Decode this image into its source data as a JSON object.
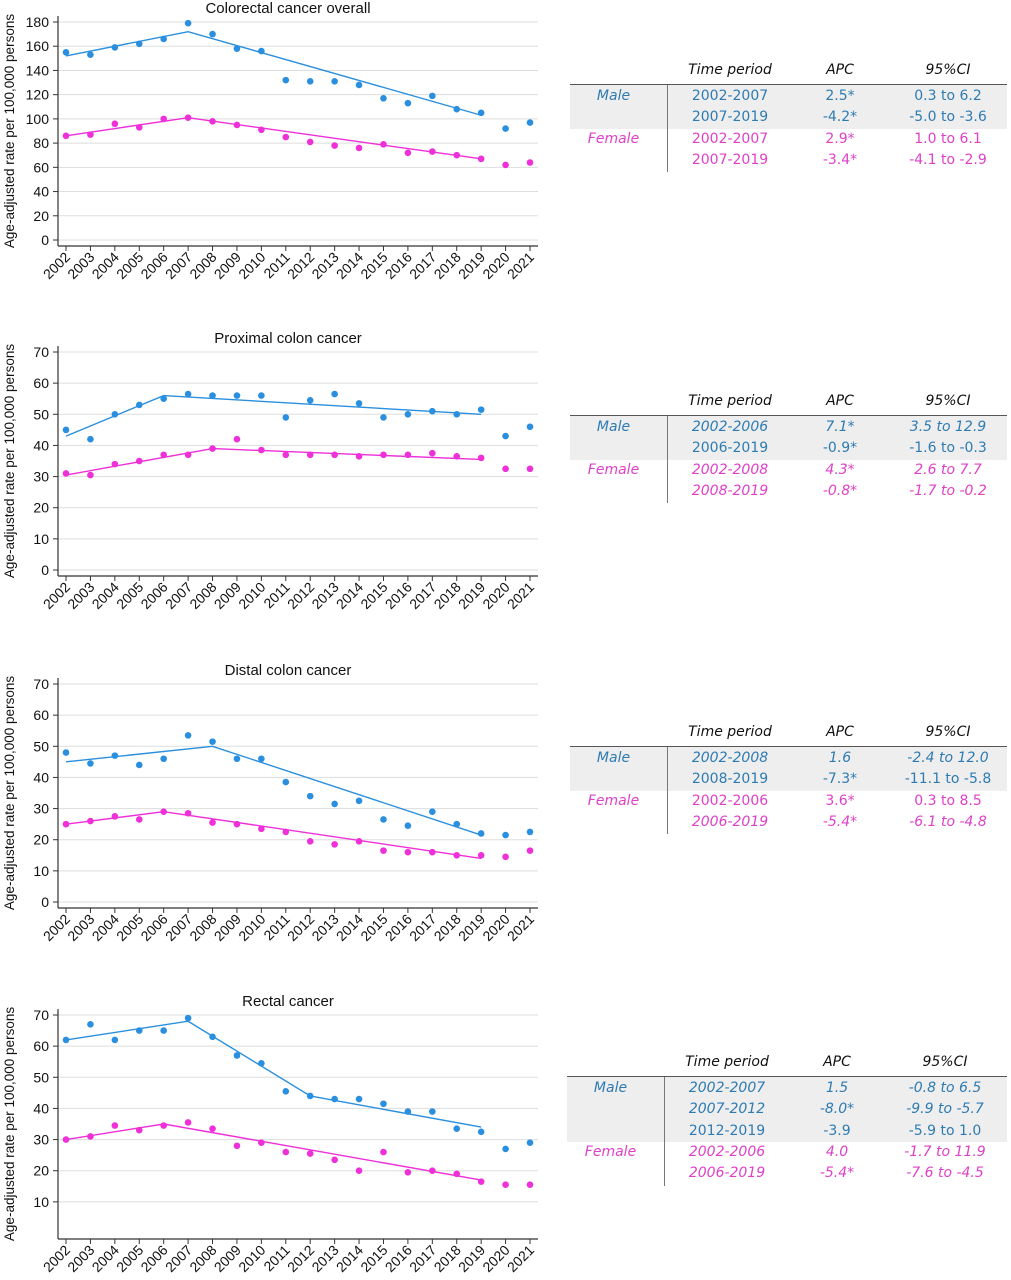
{
  "colors": {
    "male": "#2a8fde",
    "female": "#ef2fd8",
    "table_male_text": "#2e7bb2",
    "table_female_text": "#e040c8",
    "shade": "#eeeeee"
  },
  "table_headers": {
    "period": "Time period",
    "apc": "APC",
    "ci": "95%CI"
  },
  "chart_data": [
    {
      "type": "scatter",
      "title": "Colorectal cancer overall",
      "ylabel": "Age-adjusted rate per 100,000 persons",
      "xlabel": "",
      "ylim": [
        0,
        180
      ],
      "yticks": [
        0,
        20,
        40,
        60,
        80,
        100,
        120,
        140,
        160,
        180
      ],
      "grid": true,
      "categories": [
        "2002",
        "2003",
        "2004",
        "2005",
        "2006",
        "2007",
        "2008",
        "2009",
        "2010",
        "2011",
        "2012",
        "2013",
        "2014",
        "2015",
        "2016",
        "2017",
        "2018",
        "2019",
        "2020",
        "2021"
      ],
      "series": [
        {
          "name": "Male",
          "color": "#2a8fde",
          "values": [
            155,
            153,
            159,
            162,
            166,
            179,
            170,
            158,
            156,
            132,
            131,
            131,
            128,
            117,
            113,
            119,
            108,
            105,
            92,
            97
          ],
          "trend": [
            [
              2002,
              152
            ],
            [
              2007,
              172
            ],
            [
              2019,
              103
            ]
          ]
        },
        {
          "name": "Female",
          "color": "#ef2fd8",
          "values": [
            86,
            87,
            96,
            93,
            100,
            101,
            98,
            95,
            91,
            85,
            81,
            78,
            76,
            79,
            72,
            73,
            70,
            67,
            62,
            64
          ],
          "trend": [
            [
              2002,
              86
            ],
            [
              2007,
              101
            ],
            [
              2019,
              67
            ]
          ]
        }
      ],
      "apc_table": {
        "male": [
          {
            "period": "2002-2007",
            "apc": "2.5*",
            "ci": "0.3 to 6.2",
            "italic": false
          },
          {
            "period": "2007-2019",
            "apc": "-4.2*",
            "ci": "-5.0 to -3.6",
            "italic": false
          }
        ],
        "female": [
          {
            "period": "2002-2007",
            "apc": "2.9*",
            "ci": "1.0 to 6.1",
            "italic": false
          },
          {
            "period": "2007-2019",
            "apc": "-3.4*",
            "ci": "-4.1 to -2.9",
            "italic": false
          }
        ]
      }
    },
    {
      "type": "scatter",
      "title": "Proximal colon cancer",
      "ylabel": "Age-adjusted rate per 100,000 persons",
      "xlabel": "",
      "ylim": [
        0,
        70
      ],
      "yticks": [
        0,
        10,
        20,
        30,
        40,
        50,
        60,
        70
      ],
      "grid": true,
      "categories": [
        "2002",
        "2003",
        "2004",
        "2005",
        "2006",
        "2007",
        "2008",
        "2009",
        "2010",
        "2011",
        "2012",
        "2013",
        "2014",
        "2015",
        "2016",
        "2017",
        "2018",
        "2019",
        "2020",
        "2021"
      ],
      "series": [
        {
          "name": "Male",
          "color": "#2a8fde",
          "values": [
            45,
            42,
            50,
            53,
            55,
            56.5,
            56,
            56,
            56,
            49,
            54.5,
            56.5,
            53.5,
            49,
            50,
            51,
            50,
            51.5,
            43,
            46
          ],
          "trend": [
            [
              2002,
              43
            ],
            [
              2006,
              56
            ],
            [
              2019,
              50
            ]
          ]
        },
        {
          "name": "Female",
          "color": "#ef2fd8",
          "values": [
            31,
            30.5,
            34,
            35,
            37,
            37,
            39,
            42,
            38.5,
            37,
            37,
            37,
            36.5,
            37,
            37,
            37.5,
            36.5,
            36,
            32.5,
            32.5
          ],
          "trend": [
            [
              2002,
              30.5
            ],
            [
              2008,
              39
            ],
            [
              2019,
              35.5
            ]
          ]
        }
      ],
      "apc_table": {
        "male": [
          {
            "period": "2002-2006",
            "apc": "7.1*",
            "ci": "3.5 to 12.9",
            "italic": true
          },
          {
            "period": "2006-2019",
            "apc": "-0.9*",
            "ci": "-1.6 to -0.3",
            "italic": false
          }
        ],
        "female": [
          {
            "period": "2002-2008",
            "apc": "4.3*",
            "ci": "2.6 to 7.7",
            "italic": true
          },
          {
            "period": "2008-2019",
            "apc": "-0.8*",
            "ci": "-1.7 to -0.2",
            "italic": true
          }
        ]
      }
    },
    {
      "type": "scatter",
      "title": "Distal colon cancer",
      "ylabel": "Age-adjusted rate per 100,000 persons",
      "xlabel": "",
      "ylim": [
        0,
        70
      ],
      "yticks": [
        0,
        10,
        20,
        30,
        40,
        50,
        60,
        70
      ],
      "grid": true,
      "categories": [
        "2002",
        "2003",
        "2004",
        "2005",
        "2006",
        "2007",
        "2008",
        "2009",
        "2010",
        "2011",
        "2012",
        "2013",
        "2014",
        "2015",
        "2016",
        "2017",
        "2018",
        "2019",
        "2020",
        "2021"
      ],
      "series": [
        {
          "name": "Male",
          "color": "#2a8fde",
          "values": [
            48,
            44.5,
            47,
            44,
            46,
            53.5,
            51.5,
            46,
            46,
            38.5,
            34,
            31.5,
            32.5,
            26.5,
            24.5,
            29,
            25,
            22,
            21.5,
            22.5
          ],
          "trend": [
            [
              2002,
              45
            ],
            [
              2008,
              50
            ],
            [
              2019,
              21.5
            ]
          ]
        },
        {
          "name": "Female",
          "color": "#ef2fd8",
          "values": [
            25,
            26,
            27.5,
            26.5,
            29,
            28.5,
            25.5,
            25,
            23.5,
            22.5,
            19.5,
            18.5,
            19.5,
            16.5,
            16,
            16,
            15,
            15,
            14.5,
            16.5
          ],
          "trend": [
            [
              2002,
              25
            ],
            [
              2006,
              29
            ],
            [
              2019,
              14
            ]
          ]
        }
      ],
      "apc_table": {
        "male": [
          {
            "period": "2002-2008",
            "apc": "1.6",
            "ci": "-2.4 to 12.0",
            "italic": true
          },
          {
            "period": "2008-2019",
            "apc": "-7.3*",
            "ci": "-11.1 to -5.8",
            "italic": false
          }
        ],
        "female": [
          {
            "period": "2002-2006",
            "apc": "3.6*",
            "ci": "0.3 to 8.5",
            "italic": false
          },
          {
            "period": "2006-2019",
            "apc": "-5.4*",
            "ci": "-6.1 to -4.8",
            "italic": true
          }
        ]
      }
    },
    {
      "type": "scatter",
      "title": "Rectal cancer",
      "ylabel": "Age-adjusted rate per 100,000 persons",
      "xlabel": "",
      "ylim": [
        0,
        70
      ],
      "yticks": [
        10,
        20,
        30,
        40,
        50,
        60,
        70
      ],
      "grid": true,
      "categories": [
        "2002",
        "2003",
        "2004",
        "2005",
        "2006",
        "2007",
        "2008",
        "2009",
        "2010",
        "2011",
        "2012",
        "2013",
        "2014",
        "2015",
        "2016",
        "2017",
        "2018",
        "2019",
        "2020",
        "2021"
      ],
      "series": [
        {
          "name": "Male",
          "color": "#2a8fde",
          "values": [
            62,
            67,
            62,
            65,
            65,
            69,
            63,
            57,
            54.5,
            45.5,
            44,
            43,
            43,
            41.5,
            39,
            39,
            33.5,
            32.5,
            27,
            29
          ],
          "trend": [
            [
              2002,
              62
            ],
            [
              2007,
              68
            ],
            [
              2012,
              44
            ],
            [
              2019,
              34
            ]
          ]
        },
        {
          "name": "Female",
          "color": "#ef2fd8",
          "values": [
            30,
            31,
            34.5,
            33,
            34.5,
            35.5,
            33.5,
            28,
            29,
            26,
            25.5,
            23.5,
            20,
            26,
            19.5,
            20,
            19,
            16.5,
            15.5,
            15.5
          ],
          "trend": [
            [
              2002,
              30
            ],
            [
              2006,
              35
            ],
            [
              2019,
              17
            ]
          ]
        }
      ],
      "apc_table": {
        "male": [
          {
            "period": "2002-2007",
            "apc": "1.5",
            "ci": "-0.8 to 6.5",
            "italic": true
          },
          {
            "period": "2007-2012",
            "apc": "-8.0*",
            "ci": "-9.9 to -5.7",
            "italic": true
          },
          {
            "period": "2012-2019",
            "apc": "-3.9",
            "ci": "-5.9 to 1.0",
            "italic": false
          }
        ],
        "female": [
          {
            "period": "2002-2006",
            "apc": "4.0",
            "ci": "-1.7 to 11.9",
            "italic": true
          },
          {
            "period": "2006-2019",
            "apc": "-5.4*",
            "ci": "-7.6 to -4.5",
            "italic": true
          }
        ]
      }
    }
  ],
  "sex_labels": {
    "male": "Male",
    "female": "Female"
  }
}
